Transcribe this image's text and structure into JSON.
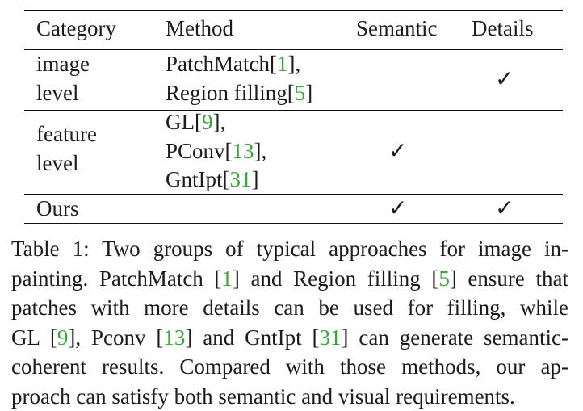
{
  "table": {
    "headers": [
      "Category",
      "Method",
      "Semantic",
      "Details"
    ],
    "rows": [
      {
        "category": [
          "image",
          "level"
        ],
        "methods": [
          {
            "name": "PatchMatch[",
            "ref": "1",
            "suffix": "],"
          },
          {
            "name": "Region filling[",
            "ref": "5",
            "suffix": "]"
          }
        ],
        "semantic": "",
        "details": "✓"
      },
      {
        "category": [
          "feature",
          "level"
        ],
        "methods": [
          {
            "name": "GL[",
            "ref": "9",
            "suffix": "],"
          },
          {
            "name": "PConv[",
            "ref": "13",
            "suffix": "],"
          },
          {
            "name": "GntIpt[",
            "ref": "31",
            "suffix": "]"
          }
        ],
        "semantic": "✓",
        "details": ""
      },
      {
        "category": [
          "Ours"
        ],
        "methods": [],
        "semantic": "✓",
        "details": "✓"
      }
    ]
  },
  "caption": {
    "lines": [
      "Table 1: Two groups of typical approaches for image in-",
      "painting. PatchMatch [1] and Region filling [5] ensure that",
      "patches with more details can be used for filling, while",
      "GL [9], Pconv [13] and GntIpt [31] can generate semantic-",
      "coherent results.  Compared with those methods, our ap-",
      "proach can satisfy both semantic and visual requirements."
    ]
  },
  "colors": {
    "reference": "#3aa63a",
    "text": "#1c1c1c"
  }
}
